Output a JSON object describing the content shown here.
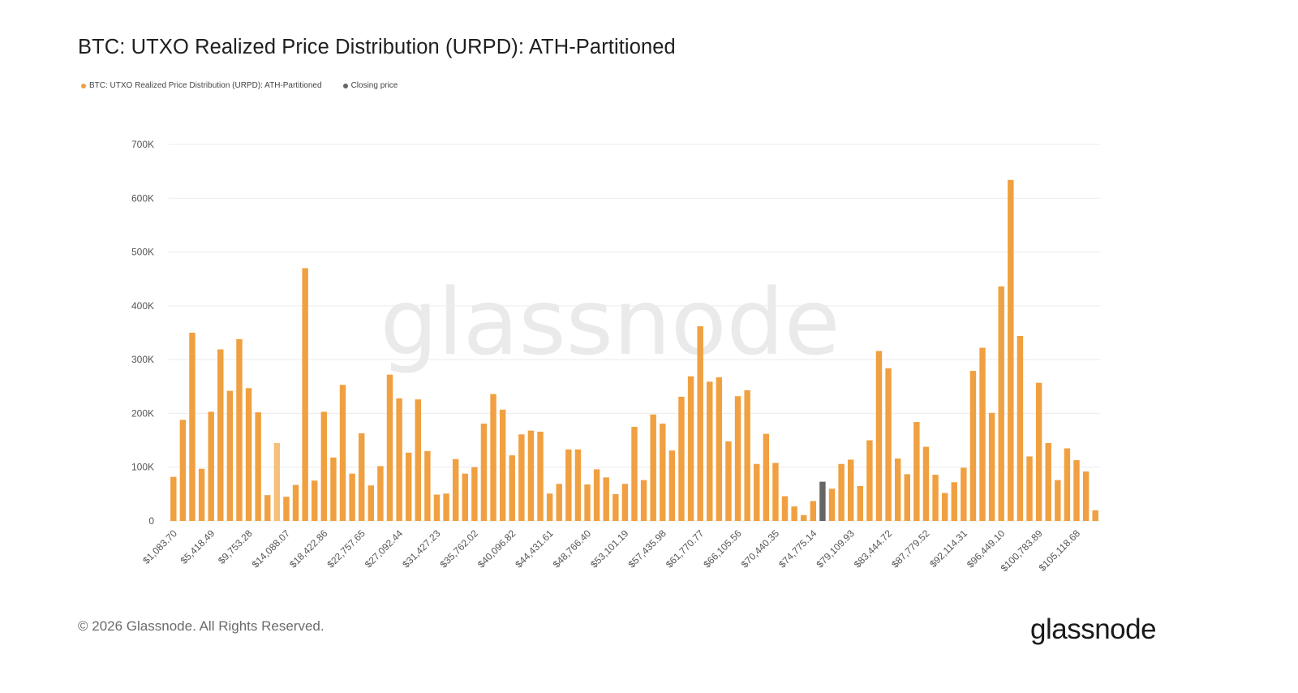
{
  "title": "BTC: UTXO Realized Price Distribution (URPD): ATH-Partitioned",
  "legend": [
    {
      "label": "BTC: UTXO Realized Price Distribution (URPD): ATH-Partitioned",
      "color": "#f0a040"
    },
    {
      "label": "Closing price",
      "color": "#666666"
    }
  ],
  "watermark": "glassnode",
  "footer": "© 2026 Glassnode. All Rights Reserved.",
  "brand": "glassnode",
  "chart_data": {
    "type": "bar",
    "title": "BTC: UTXO Realized Price Distribution (URPD): ATH-Partitioned",
    "xlabel": "",
    "ylabel": "",
    "ylim": [
      0,
      700000
    ],
    "yticks": [
      0,
      100000,
      200000,
      300000,
      400000,
      500000,
      600000,
      700000
    ],
    "ytick_labels": [
      "0",
      "100K",
      "200K",
      "300K",
      "400K",
      "500K",
      "600K",
      "700K"
    ],
    "grid": true,
    "legend_position": "top-left",
    "xtick_labels": [
      "$1,083.70",
      "$5,418.49",
      "$9,753.28",
      "$14,088.07",
      "$18,422.86",
      "$22,757.65",
      "$27,092.44",
      "$31,427.23",
      "$35,762.02",
      "$40,096.82",
      "$44,431.61",
      "$48,766.40",
      "$53,101.19",
      "$57,435.98",
      "$61,770.77",
      "$66,105.56",
      "$70,440.35",
      "$74,775.14",
      "$79,109.93",
      "$83,444.72",
      "$87,779.52",
      "$92,114.31",
      "$96,449.10",
      "$100,783.89",
      "$105,118.68"
    ],
    "xtick_every": 4,
    "closing_price_index": 69,
    "colors": {
      "bar": "#f0a040",
      "bar_light": "#f5c07a",
      "closing": "#666666"
    },
    "values": [
      82000,
      188000,
      350000,
      97000,
      203000,
      319000,
      242000,
      338000,
      247000,
      202000,
      48000,
      145000,
      45000,
      67000,
      470000,
      75000,
      203000,
      118000,
      253000,
      88000,
      163000,
      66000,
      102000,
      272000,
      228000,
      127000,
      226000,
      130000,
      49000,
      51000,
      115000,
      88000,
      100000,
      181000,
      236000,
      207000,
      122000,
      161000,
      168000,
      166000,
      51000,
      69000,
      133000,
      133000,
      68000,
      96000,
      81000,
      50000,
      69000,
      175000,
      76000,
      198000,
      181000,
      131000,
      231000,
      269000,
      362000,
      259000,
      267000,
      148000,
      232000,
      243000,
      106000,
      162000,
      108000,
      46000,
      27000,
      11000,
      37000,
      73000,
      60000,
      106000,
      114000,
      65000,
      150000,
      316000,
      284000,
      116000,
      87000,
      184000,
      138000,
      86000,
      52000,
      72000,
      99000,
      279000,
      322000,
      201000,
      436000,
      634000,
      344000,
      120000,
      257000,
      145000,
      76000,
      135000,
      113000,
      92000,
      20000
    ]
  }
}
